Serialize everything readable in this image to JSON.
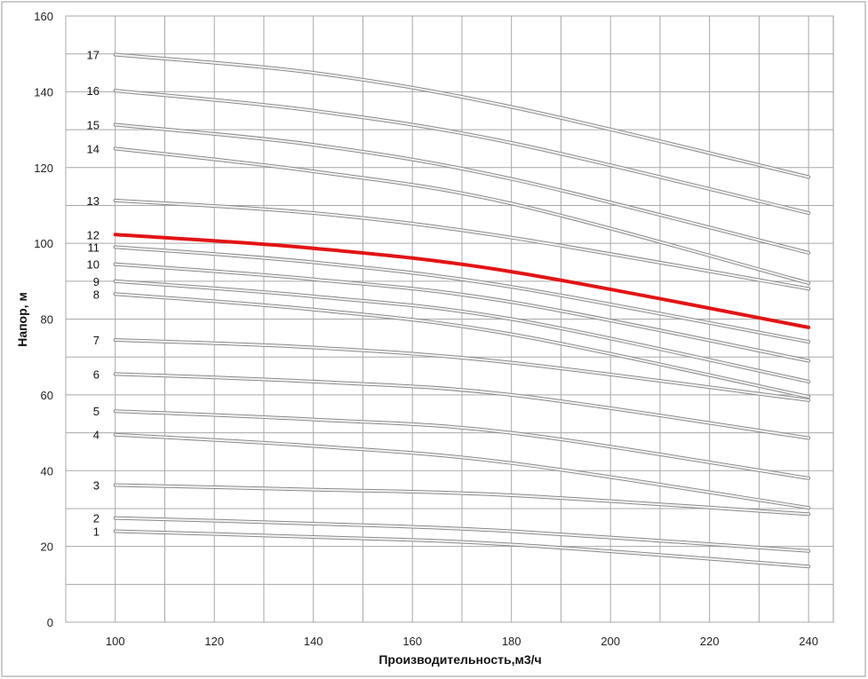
{
  "chart_data": {
    "type": "line",
    "xlabel": "Производительность,м3/ч",
    "ylabel": "Напор, м",
    "xlim": [
      90,
      245
    ],
    "ylim": [
      0,
      160
    ],
    "x_ticks": [
      "100",
      "120",
      "140",
      "160",
      "180",
      "200",
      "220",
      "240"
    ],
    "y_ticks": [
      "0",
      "20",
      "40",
      "60",
      "80",
      "100",
      "120",
      "140",
      "160"
    ],
    "grid": true,
    "colors": {
      "normal": "#b9b9b9",
      "highlight": "#e31414"
    },
    "series": [
      {
        "name": "1",
        "x": [
          100,
          140,
          180,
          240
        ],
        "y": [
          24,
          22.5,
          20.5,
          14.7
        ]
      },
      {
        "name": "2",
        "x": [
          100,
          140,
          180,
          240
        ],
        "y": [
          27.5,
          26,
          24,
          18.8
        ]
      },
      {
        "name": "3",
        "x": [
          100,
          140,
          180,
          240
        ],
        "y": [
          36.2,
          35,
          33.5,
          28.5
        ]
      },
      {
        "name": "4",
        "x": [
          100,
          140,
          180,
          240
        ],
        "y": [
          49.5,
          46.5,
          42,
          30.2
        ]
      },
      {
        "name": "5",
        "x": [
          100,
          140,
          180,
          240
        ],
        "y": [
          55.7,
          53.5,
          50,
          38
        ]
      },
      {
        "name": "6",
        "x": [
          100,
          140,
          180,
          240
        ],
        "y": [
          65.5,
          63.5,
          60,
          48.6
        ]
      },
      {
        "name": "7",
        "x": [
          100,
          140,
          180,
          240
        ],
        "y": [
          74.5,
          72.5,
          68.5,
          58.6
        ]
      },
      {
        "name": "8",
        "x": [
          100,
          140,
          180,
          240
        ],
        "y": [
          86.6,
          82.5,
          76,
          59.5
        ]
      },
      {
        "name": "9",
        "x": [
          100,
          140,
          180,
          240
        ],
        "y": [
          90,
          86,
          80,
          63.5
        ]
      },
      {
        "name": "10",
        "x": [
          100,
          140,
          180,
          240
        ],
        "y": [
          94.5,
          90.5,
          84.5,
          69
        ]
      },
      {
        "name": "11",
        "x": [
          100,
          140,
          180,
          240
        ],
        "y": [
          99,
          95,
          88.5,
          74
        ]
      },
      {
        "name": "12",
        "x": [
          100,
          140,
          180,
          240
        ],
        "y": [
          102.3,
          98.7,
          92.5,
          77.8
        ],
        "highlight": true
      },
      {
        "name": "13",
        "x": [
          100,
          140,
          180,
          240
        ],
        "y": [
          111.3,
          108,
          101.5,
          88
        ]
      },
      {
        "name": "14",
        "x": [
          100,
          140,
          180,
          240
        ],
        "y": [
          125,
          119,
          110.5,
          89.5
        ]
      },
      {
        "name": "15",
        "x": [
          100,
          140,
          180,
          240
        ],
        "y": [
          131.3,
          126,
          117,
          97.5
        ]
      },
      {
        "name": "16",
        "x": [
          100,
          140,
          180,
          240
        ],
        "y": [
          140.3,
          135,
          126.5,
          108
        ]
      },
      {
        "name": "17",
        "x": [
          100,
          140,
          180,
          240
        ],
        "y": [
          149.8,
          145,
          136,
          117.5
        ]
      }
    ]
  }
}
